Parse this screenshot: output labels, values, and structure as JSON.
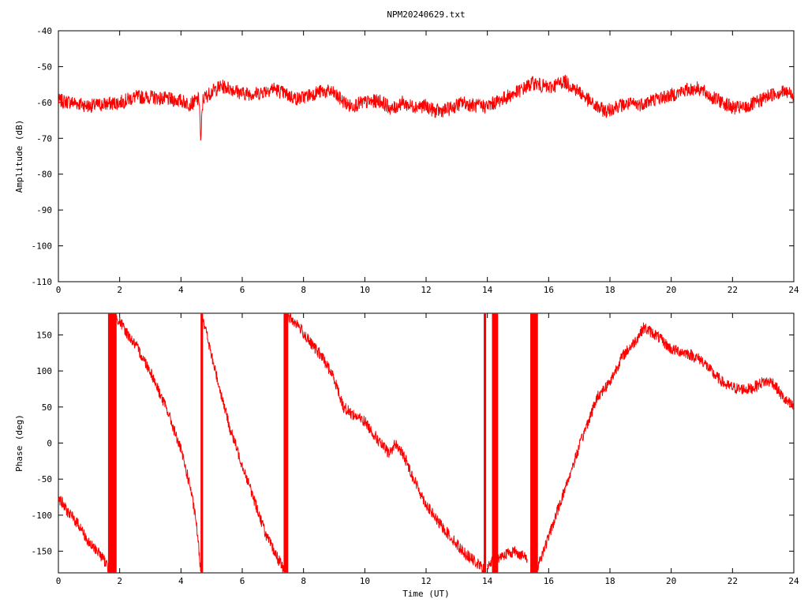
{
  "chart_data": [
    {
      "type": "line",
      "title": "NPM20240629.txt",
      "xlabel": "",
      "ylabel": "Amplitude (dB)",
      "xlim": [
        0,
        24
      ],
      "ylim": [
        -110,
        -40
      ],
      "xticks": [
        "0",
        "2",
        "4",
        "6",
        "8",
        "10",
        "12",
        "14",
        "16",
        "18",
        "20",
        "22",
        "24"
      ],
      "yticks": [
        "-40",
        "-50",
        "-60",
        "-70",
        "-80",
        "-90",
        "-100",
        "-110"
      ],
      "grid": false,
      "color": "#ff0000",
      "band": 2.0,
      "x": [
        0,
        0.5,
        1,
        1.5,
        2,
        2.5,
        3,
        3.5,
        4,
        4.3,
        4.6,
        4.65,
        4.68,
        4.72,
        5,
        5.3,
        5.6,
        6,
        6.5,
        7,
        7.5,
        7.8,
        8,
        8.5,
        8.9,
        9.2,
        9.5,
        10,
        10.5,
        10.9,
        11.2,
        11.5,
        12,
        12.3,
        12.7,
        13.2,
        13.6,
        14,
        14.5,
        15,
        15.5,
        16,
        16.5,
        17,
        17.5,
        17.9,
        18.2,
        18.6,
        19,
        19.5,
        20,
        20.5,
        20.9,
        21.3,
        21.7,
        22,
        22.4,
        22.8,
        23.2,
        23.6,
        23.9,
        24
      ],
      "y": [
        -59.5,
        -60,
        -61,
        -60.5,
        -60,
        -58.5,
        -58.5,
        -59,
        -59.5,
        -60.5,
        -59,
        -72.5,
        -64,
        -59,
        -57,
        -55.5,
        -56,
        -57.5,
        -57.5,
        -56,
        -58,
        -59,
        -58.5,
        -57,
        -57,
        -59,
        -61,
        -60,
        -59.5,
        -62,
        -60,
        -61,
        -61,
        -62.5,
        -62,
        -60,
        -61,
        -61,
        -59,
        -57,
        -54.5,
        -56,
        -54,
        -57,
        -61,
        -62.5,
        -61,
        -60.5,
        -60.5,
        -59,
        -58,
        -56.5,
        -56,
        -58.5,
        -60,
        -61.5,
        -61.5,
        -60,
        -58,
        -57,
        -57.5,
        -58.5
      ],
      "name": ""
    },
    {
      "type": "line",
      "title": "",
      "xlabel": "Time (UT)",
      "ylabel": "Phase (deg)",
      "xlim": [
        0,
        24
      ],
      "ylim": [
        -180,
        180
      ],
      "xticks": [
        "0",
        "2",
        "4",
        "6",
        "8",
        "10",
        "12",
        "14",
        "16",
        "18",
        "20",
        "22",
        "24"
      ],
      "yticks": [
        "150",
        "100",
        "50",
        "0",
        "-50",
        "-100",
        "-150"
      ],
      "grid": false,
      "color": "#ff0000",
      "band": 8,
      "segments": [
        {
          "x": [
            0,
            0.3,
            0.7,
            1,
            1.3,
            1.6,
            1.62
          ],
          "y": [
            -75,
            -95,
            -115,
            -140,
            -150,
            -170,
            -175
          ]
        },
        {
          "x": [
            1.9,
            2.2,
            2.6,
            3,
            3.3,
            3.6,
            4,
            4.3,
            4.5,
            4.65
          ],
          "y": [
            175,
            155,
            130,
            100,
            70,
            40,
            -10,
            -60,
            -110,
            -178
          ]
        },
        {
          "x": [
            4.7,
            5,
            5.3,
            5.6,
            6,
            6.4,
            6.8,
            7.1,
            7.35
          ],
          "y": [
            178,
            120,
            70,
            20,
            -30,
            -80,
            -130,
            -155,
            -175
          ]
        },
        {
          "x": [
            7.5,
            7.8,
            8.2,
            8.6,
            9,
            9.3,
            9.6,
            10,
            10.5,
            10.8,
            11,
            11.3,
            11.6,
            12,
            12.4,
            12.8,
            13.2,
            13.6,
            13.9
          ],
          "y": [
            175,
            165,
            140,
            120,
            90,
            50,
            40,
            30,
            0,
            -15,
            0,
            -20,
            -50,
            -85,
            -110,
            -130,
            -150,
            -165,
            -175
          ]
        },
        {
          "x": [
            14,
            14.5,
            14.9,
            15.3
          ],
          "y": [
            -170,
            -155,
            -150,
            -160
          ]
        },
        {
          "x": [
            15.6,
            16,
            16.4,
            16.8,
            17.2,
            17.6,
            18,
            18.4,
            18.8,
            19.1,
            19.5,
            20,
            20.5,
            21,
            21.4,
            21.8,
            22.2,
            22.6,
            23,
            23.3,
            23.7,
            24
          ],
          "y": [
            -175,
            -130,
            -80,
            -30,
            20,
            65,
            85,
            120,
            140,
            160,
            150,
            130,
            125,
            115,
            95,
            80,
            75,
            75,
            85,
            85,
            60,
            50
          ]
        }
      ],
      "wrap_bands": [
        [
          1.62,
          1.9
        ],
        [
          4.64,
          4.72
        ],
        [
          7.35,
          7.5
        ],
        [
          13.88,
          13.96
        ],
        [
          14.15,
          14.35
        ],
        [
          15.4,
          15.65
        ]
      ],
      "name": ""
    }
  ]
}
